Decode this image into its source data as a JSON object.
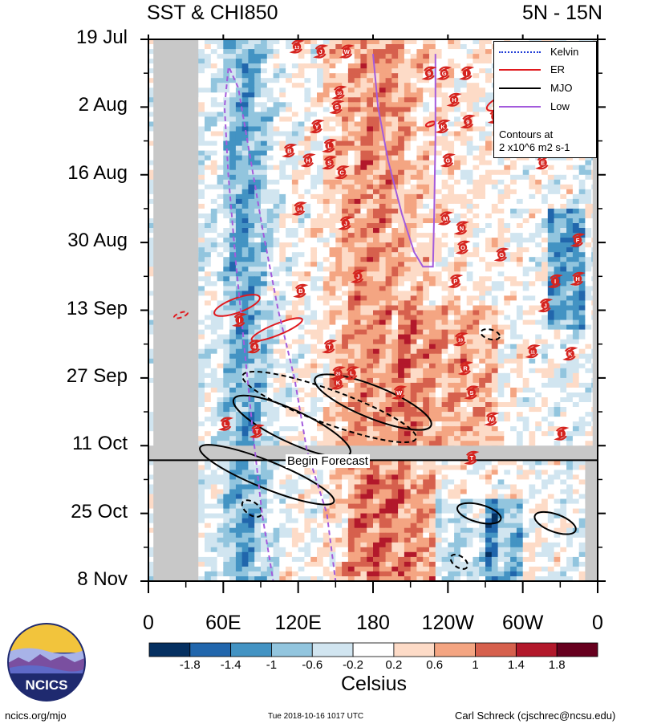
{
  "header": {
    "title_left": "SST & CHI850",
    "title_right": "5N - 15N"
  },
  "colors": {
    "scale": [
      "#053061",
      "#2166ac",
      "#4393c3",
      "#92c5de",
      "#d1e5f0",
      "#ffffff",
      "#fddbc7",
      "#f4a582",
      "#d6604d",
      "#b2182b",
      "#67001f"
    ],
    "kelvin": "#1f3cd6",
    "er": "#e0191e",
    "mjo": "#000000",
    "low": "#a35bdc",
    "missing": "#c8c8c8",
    "storm": "#d5241f"
  },
  "chart_data": {
    "type": "heatmap",
    "title": "SST & CHI850",
    "subtitle": "5N - 15N",
    "xlabel": "",
    "ylabel": "",
    "x_ticks": [
      "0",
      "60E",
      "120E",
      "180",
      "120W",
      "60W",
      "0"
    ],
    "x_tick_lon": [
      0,
      60,
      120,
      180,
      240,
      300,
      360
    ],
    "y_ticks": [
      "19 Jul",
      "2 Aug",
      "16 Aug",
      "30 Aug",
      "13 Sep",
      "27 Sep",
      "11 Oct",
      "25 Oct",
      "8 Nov"
    ],
    "y_tick_day": [
      0,
      14,
      28,
      42,
      56,
      70,
      84,
      98,
      112
    ],
    "xlim": [
      0,
      360
    ],
    "ylim_days": [
      0,
      112
    ],
    "forecast_start_day": 87,
    "forecast_label": "Begin Forecast",
    "colorbar": {
      "label": "Celsius",
      "tick_labels": [
        "-1.8",
        "-1.4",
        "-1",
        "-0.6",
        "-0.2",
        "0.2",
        "0.6",
        "1",
        "1.4",
        "1.8"
      ],
      "boundaries": [
        -1.8,
        -1.4,
        -1.0,
        -0.6,
        -0.2,
        0.2,
        0.6,
        1.0,
        1.4,
        1.8
      ]
    },
    "legend": {
      "placement": "top-right",
      "entries": [
        "Kelvin",
        "ER",
        "MJO",
        "Low"
      ],
      "note": [
        "Contours at",
        "2 x10^6 m2 s-1"
      ]
    },
    "storms": [
      {
        "label": "13",
        "lon": 119,
        "day": 1.5
      },
      {
        "label": "J",
        "lon": 138,
        "day": 2.5
      },
      {
        "label": "W",
        "lon": 159,
        "day": 2.5
      },
      {
        "label": "9",
        "lon": 225,
        "day": 7
      },
      {
        "label": "G",
        "lon": 237,
        "day": 7
      },
      {
        "label": "I",
        "lon": 255,
        "day": 7
      },
      {
        "label": "16",
        "lon": 153,
        "day": 11
      },
      {
        "label": "H",
        "lon": 245,
        "day": 12.5
      },
      {
        "label": "S",
        "lon": 151,
        "day": 14
      },
      {
        "label": "I",
        "lon": 278,
        "day": 16
      },
      {
        "label": "9",
        "lon": 256,
        "day": 17
      },
      {
        "label": "K",
        "lon": 236,
        "day": 18
      },
      {
        "label": "Y",
        "lon": 135,
        "day": 18
      },
      {
        "label": "L",
        "lon": 145,
        "day": 22
      },
      {
        "label": "B",
        "lon": 113,
        "day": 23
      },
      {
        "label": "H",
        "lon": 128,
        "day": 25
      },
      {
        "label": "S",
        "lon": 145,
        "day": 25.5
      },
      {
        "label": "E",
        "lon": 316,
        "day": 25.5
      },
      {
        "label": "G",
        "lon": 240,
        "day": 25
      },
      {
        "label": "C",
        "lon": 155,
        "day": 27.5
      },
      {
        "label": "24",
        "lon": 121,
        "day": 35
      },
      {
        "label": "M",
        "lon": 238,
        "day": 37
      },
      {
        "label": "J",
        "lon": 158,
        "day": 38
      },
      {
        "label": "N",
        "lon": 251,
        "day": 39
      },
      {
        "label": "F",
        "lon": 344,
        "day": 41.5
      },
      {
        "label": "O",
        "lon": 252,
        "day": 43
      },
      {
        "label": "G",
        "lon": 283,
        "day": 44.5
      },
      {
        "label": "J",
        "lon": 168,
        "day": 49
      },
      {
        "label": "P",
        "lon": 246,
        "day": 50
      },
      {
        "label": "I",
        "lon": 326,
        "day": 50
      },
      {
        "label": "H",
        "lon": 344,
        "day": 49.5
      },
      {
        "label": "B",
        "lon": 122,
        "day": 52
      },
      {
        "label": "J",
        "lon": 318,
        "day": 55
      },
      {
        "label": "I",
        "lon": 73,
        "day": 58
      },
      {
        "label": "19",
        "lon": 250,
        "day": 62
      },
      {
        "label": "4",
        "lon": 85,
        "day": 63.5
      },
      {
        "label": "T",
        "lon": 145,
        "day": 63.5
      },
      {
        "label": "11",
        "lon": 308,
        "day": 64.5
      },
      {
        "label": "K",
        "lon": 338,
        "day": 65
      },
      {
        "label": "R",
        "lon": 254,
        "day": 68
      },
      {
        "label": "20",
        "lon": 152,
        "day": 69
      },
      {
        "label": "L",
        "lon": 163,
        "day": 69
      },
      {
        "label": "K",
        "lon": 152,
        "day": 71
      },
      {
        "label": "W",
        "lon": 201,
        "day": 73
      },
      {
        "label": "S",
        "lon": 259,
        "day": 73
      },
      {
        "label": "M",
        "lon": 275,
        "day": 78.5
      },
      {
        "label": "L",
        "lon": 62,
        "day": 79.5
      },
      {
        "label": "T",
        "lon": 87,
        "day": 81
      },
      {
        "label": "I",
        "lon": 331,
        "day": 81.5
      },
      {
        "label": "T",
        "lon": 259,
        "day": 86.5
      }
    ]
  },
  "footer": {
    "logo_text": "NCICS",
    "url": "ncics.org/mjo",
    "timestamp": "Tue 2018-10-16 1017 UTC",
    "author": "Carl Schreck (cjschrec@ncsu.edu)"
  }
}
